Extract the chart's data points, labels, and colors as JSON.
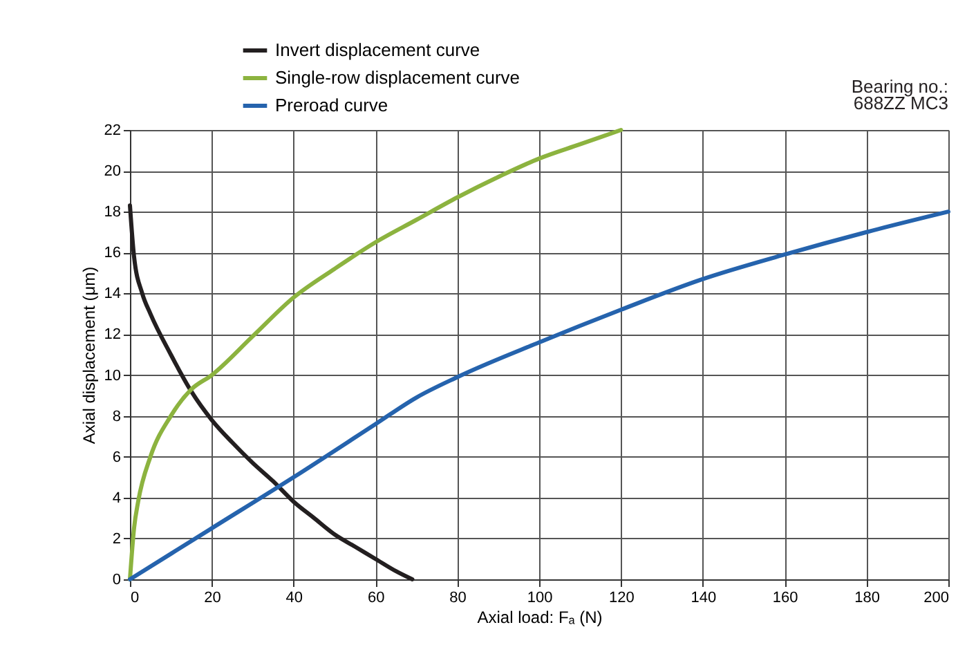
{
  "chart_data": {
    "type": "line",
    "xlabel": "Axial load: Fₐ (N)",
    "ylabel": "Axial displacement (μm)",
    "xlim": [
      0,
      200
    ],
    "xticks": [
      0,
      20,
      40,
      60,
      80,
      100,
      120,
      140,
      160,
      180,
      200
    ],
    "ylim": [
      0,
      22
    ],
    "yticks": [
      0,
      2,
      4,
      6,
      8,
      10,
      12,
      14,
      16,
      18,
      20,
      22
    ],
    "grid": true,
    "legend": "top",
    "marker": "none",
    "line_style": "solid",
    "annotations": [
      "Bearing no.:",
      "688ZZ MC3"
    ],
    "series": [
      {
        "name": "Invert displacement curve",
        "color": "#231f20",
        "x": [
          0,
          1,
          3,
          5,
          10,
          15,
          20,
          25,
          30,
          35,
          40,
          45,
          50,
          55,
          60,
          65,
          69
        ],
        "values": [
          18.3,
          15.8,
          14,
          13,
          11,
          9.2,
          7.8,
          6.7,
          5.7,
          4.8,
          3.8,
          3.0,
          2.2,
          1.6,
          1.0,
          0.4,
          0
        ]
      },
      {
        "name": "Single-row displacement curve",
        "color": "#8cb33f",
        "x": [
          0,
          1,
          2,
          5,
          10,
          15,
          20,
          30,
          40,
          50,
          60,
          70,
          80,
          90,
          100,
          110,
          120
        ],
        "values": [
          0,
          2.5,
          3.8,
          6,
          8,
          9.3,
          10,
          11.9,
          13.8,
          15.2,
          16.5,
          17.6,
          18.7,
          19.7,
          20.6,
          21.3,
          22
        ]
      },
      {
        "name": "Preroad curve",
        "color": "#2563ad",
        "x": [
          0,
          20,
          40,
          60,
          70,
          80,
          100,
          120,
          140,
          160,
          180,
          200
        ],
        "values": [
          0,
          2.5,
          5.0,
          7.6,
          8.9,
          9.9,
          11.6,
          13.2,
          14.7,
          15.9,
          17.0,
          18
        ]
      }
    ]
  }
}
